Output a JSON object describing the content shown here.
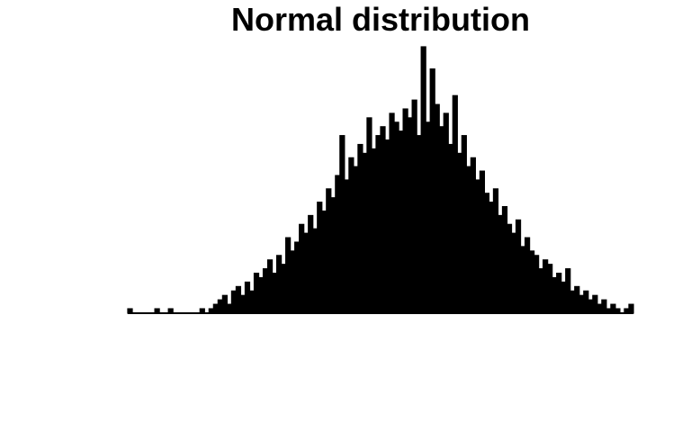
{
  "chart_data": {
    "type": "histogram",
    "title": "Normal distribution",
    "color": "#000000",
    "bins": [
      0,
      1,
      2,
      3,
      4,
      5,
      6,
      7,
      8,
      9,
      10,
      11,
      12,
      13,
      14,
      15,
      16,
      17,
      18,
      19,
      20,
      21,
      22,
      23,
      24,
      25,
      26,
      27,
      28,
      29,
      30,
      31,
      32,
      33,
      34,
      35,
      36,
      37,
      38,
      39,
      40,
      41,
      42,
      43,
      44,
      45,
      46,
      47,
      48,
      49,
      50,
      51,
      52,
      53,
      54,
      55,
      56,
      57,
      58,
      59,
      60,
      61,
      62,
      63,
      64,
      65,
      66,
      67,
      68,
      69,
      70,
      71,
      72,
      73,
      74,
      75,
      76,
      77,
      78,
      79,
      80,
      81,
      82,
      83,
      84,
      85,
      86,
      87,
      88,
      89,
      90,
      91,
      92,
      93,
      94,
      95,
      96,
      97,
      98,
      99,
      100,
      101,
      102,
      103,
      104,
      105,
      106,
      107,
      108,
      109,
      110,
      111,
      112
    ],
    "values": [
      1,
      0,
      0,
      0,
      0,
      0,
      1,
      0,
      0,
      1,
      0,
      0,
      0,
      0,
      0,
      0,
      1,
      0,
      1,
      2,
      3,
      4,
      2,
      5,
      6,
      4,
      7,
      5,
      9,
      8,
      10,
      12,
      9,
      13,
      11,
      17,
      14,
      16,
      20,
      18,
      22,
      19,
      25,
      23,
      28,
      26,
      31,
      40,
      30,
      35,
      33,
      38,
      36,
      44,
      37,
      40,
      42,
      39,
      45,
      43,
      41,
      46,
      44,
      48,
      40,
      60,
      43,
      55,
      47,
      42,
      45,
      38,
      49,
      36,
      40,
      33,
      35,
      30,
      32,
      27,
      25,
      28,
      22,
      24,
      20,
      18,
      21,
      15,
      17,
      14,
      13,
      10,
      12,
      11,
      8,
      9,
      7,
      10,
      5,
      6,
      4,
      5,
      3,
      4,
      2,
      3,
      1,
      2,
      1,
      0,
      1,
      2
    ],
    "xlim": [
      0,
      112
    ],
    "ylim": [
      0,
      60
    ]
  }
}
